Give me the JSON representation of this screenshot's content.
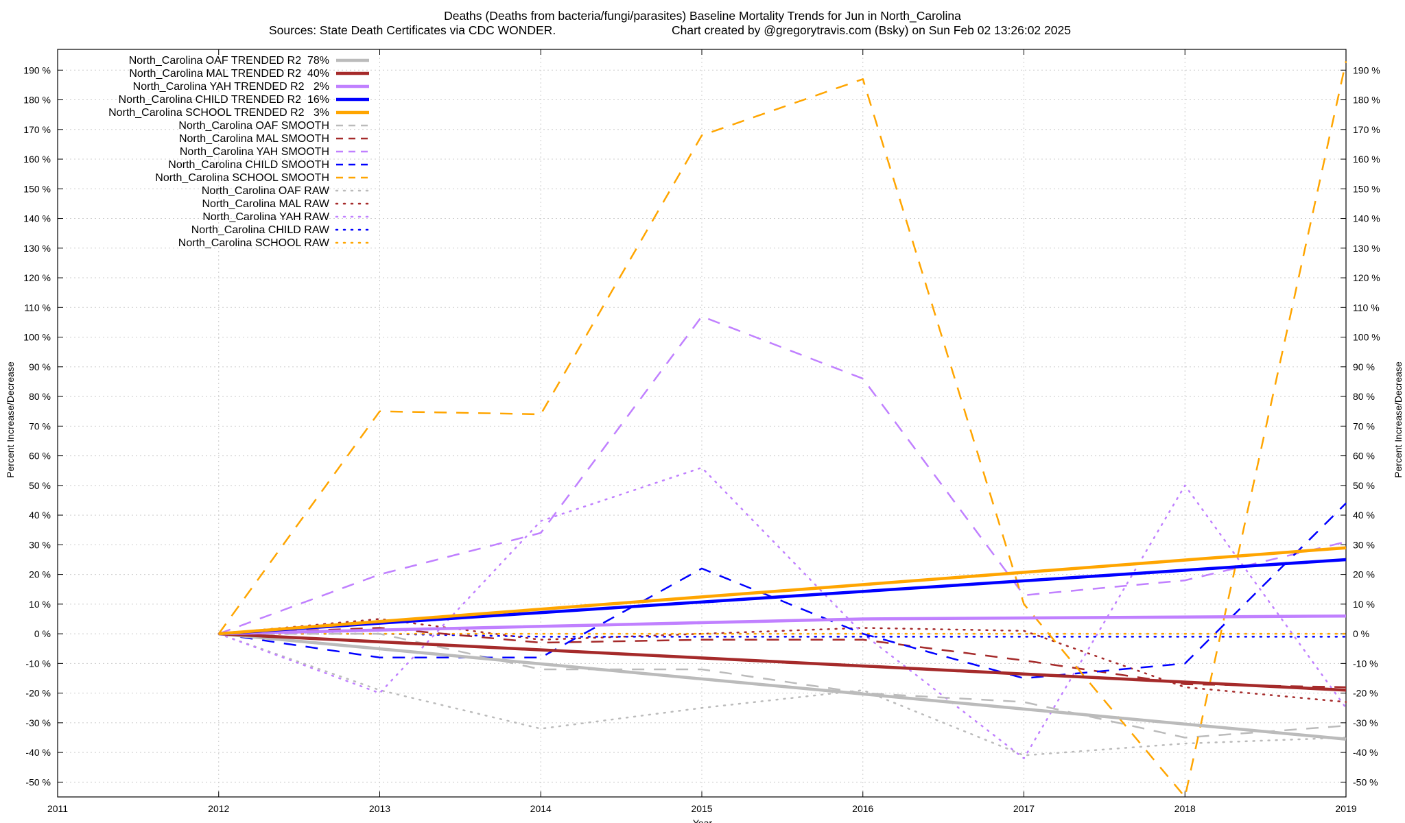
{
  "chart_data": {
    "type": "line",
    "title": "Deaths (Deaths from bacteria/fungi/parasites)  Baseline Mortality Trends for Jun in North_Carolina",
    "subtitle_left": "Sources: State Death Certificates via CDC WONDER.",
    "subtitle_right": "Chart created by @gregorytravis.com (Bsky) on Sun Feb 02 13:26:02 2025",
    "xlabel": "Year",
    "ylabel": "Percent Increase/Decrease",
    "y2label": "Percent Increase/Decrease",
    "xlim": [
      2011,
      2019
    ],
    "ylim": [
      -55,
      197
    ],
    "x_ticks": [
      2011,
      2012,
      2013,
      2014,
      2015,
      2016,
      2017,
      2018,
      2019
    ],
    "y_ticks": [
      -50,
      -40,
      -30,
      -20,
      -10,
      0,
      10,
      20,
      30,
      40,
      50,
      60,
      70,
      80,
      90,
      100,
      110,
      120,
      130,
      140,
      150,
      160,
      170,
      180,
      190
    ],
    "y_tick_suffix": " %",
    "grid": true,
    "legend_position": "top-left",
    "colors": {
      "oaf": "#bbbbbb",
      "mal": "#a52a2a",
      "yah": "#c080ff",
      "child": "#0000ff",
      "school": "#ffa500"
    },
    "series": [
      {
        "name": "North_Carolina OAF TRENDED R2  78%",
        "style": "trended",
        "color_key": "oaf",
        "x": [
          2012,
          2019
        ],
        "values": [
          0,
          -35.5
        ]
      },
      {
        "name": "North_Carolina MAL TRENDED R2  40%",
        "style": "trended",
        "color_key": "mal",
        "x": [
          2012,
          2019
        ],
        "values": [
          0,
          -19
        ]
      },
      {
        "name": "North_Carolina YAH TRENDED R2   2%",
        "style": "trended",
        "color_key": "yah",
        "x": [
          2012,
          2016,
          2019
        ],
        "values": [
          0,
          5,
          6
        ]
      },
      {
        "name": "North_Carolina CHILD TRENDED R2  16%",
        "style": "trended",
        "color_key": "child",
        "x": [
          2012,
          2019
        ],
        "values": [
          0,
          25
        ]
      },
      {
        "name": "North_Carolina SCHOOL TRENDED R2   3%",
        "style": "trended",
        "color_key": "school",
        "x": [
          2012,
          2019
        ],
        "values": [
          0,
          29
        ]
      },
      {
        "name": "North_Carolina OAF SMOOTH",
        "style": "smooth",
        "color_key": "oaf",
        "x": [
          2012,
          2013,
          2014,
          2015,
          2016,
          2017,
          2018,
          2019
        ],
        "values": [
          0,
          0,
          -12,
          -12,
          -20,
          -23,
          -35,
          -31
        ]
      },
      {
        "name": "North_Carolina MAL SMOOTH",
        "style": "smooth",
        "color_key": "mal",
        "x": [
          2012,
          2013,
          2014,
          2015,
          2016,
          2017,
          2018,
          2019
        ],
        "values": [
          0,
          2,
          -3,
          -2,
          -2,
          -9,
          -17,
          -18
        ]
      },
      {
        "name": "North_Carolina YAH SMOOTH",
        "style": "smooth",
        "color_key": "yah",
        "x": [
          2012,
          2013,
          2014,
          2015,
          2016,
          2017,
          2018,
          2019
        ],
        "values": [
          0,
          20,
          34,
          107,
          86,
          13,
          18,
          31
        ]
      },
      {
        "name": "North_Carolina CHILD SMOOTH",
        "style": "smooth",
        "color_key": "child",
        "x": [
          2012,
          2013,
          2014,
          2015,
          2016,
          2017,
          2018,
          2019
        ],
        "values": [
          0,
          -8,
          -8,
          22,
          0,
          -15,
          -10,
          44
        ]
      },
      {
        "name": "North_Carolina SCHOOL SMOOTH",
        "style": "smooth",
        "color_key": "school",
        "x": [
          2012,
          2013,
          2014,
          2015,
          2016,
          2017,
          2018,
          2019
        ],
        "values": [
          0,
          75,
          74,
          168,
          187,
          10,
          -55,
          193
        ]
      },
      {
        "name": "North_Carolina OAF RAW",
        "style": "raw",
        "color_key": "oaf",
        "x": [
          2012,
          2013,
          2014,
          2015,
          2016,
          2017,
          2018,
          2019
        ],
        "values": [
          0,
          -19,
          -32,
          -25,
          -19,
          -41,
          -37,
          -35
        ]
      },
      {
        "name": "North_Carolina MAL RAW",
        "style": "raw",
        "color_key": "mal",
        "x": [
          2012,
          2013,
          2014,
          2015,
          2016,
          2017,
          2018,
          2019
        ],
        "values": [
          0,
          5,
          -2,
          0,
          2,
          1,
          -18,
          -23
        ]
      },
      {
        "name": "North_Carolina YAH RAW",
        "style": "raw",
        "color_key": "yah",
        "x": [
          2012,
          2013,
          2014,
          2015,
          2016,
          2017,
          2018,
          2019
        ],
        "values": [
          0,
          -20,
          38,
          56,
          0,
          -42,
          50,
          -25
        ]
      },
      {
        "name": "North_Carolina CHILD RAW",
        "style": "raw",
        "color_key": "child",
        "x": [
          2012,
          2013,
          2014,
          2015,
          2016,
          2017,
          2018,
          2019
        ],
        "values": [
          0,
          0,
          -1,
          -1,
          -1,
          -1,
          -1,
          -1
        ]
      },
      {
        "name": "North_Carolina SCHOOL RAW",
        "style": "raw",
        "color_key": "school",
        "x": [
          2012,
          2013,
          2014,
          2015,
          2016,
          2017,
          2018,
          2019
        ],
        "values": [
          0,
          0,
          0,
          0,
          0,
          0,
          0,
          0
        ]
      }
    ]
  }
}
